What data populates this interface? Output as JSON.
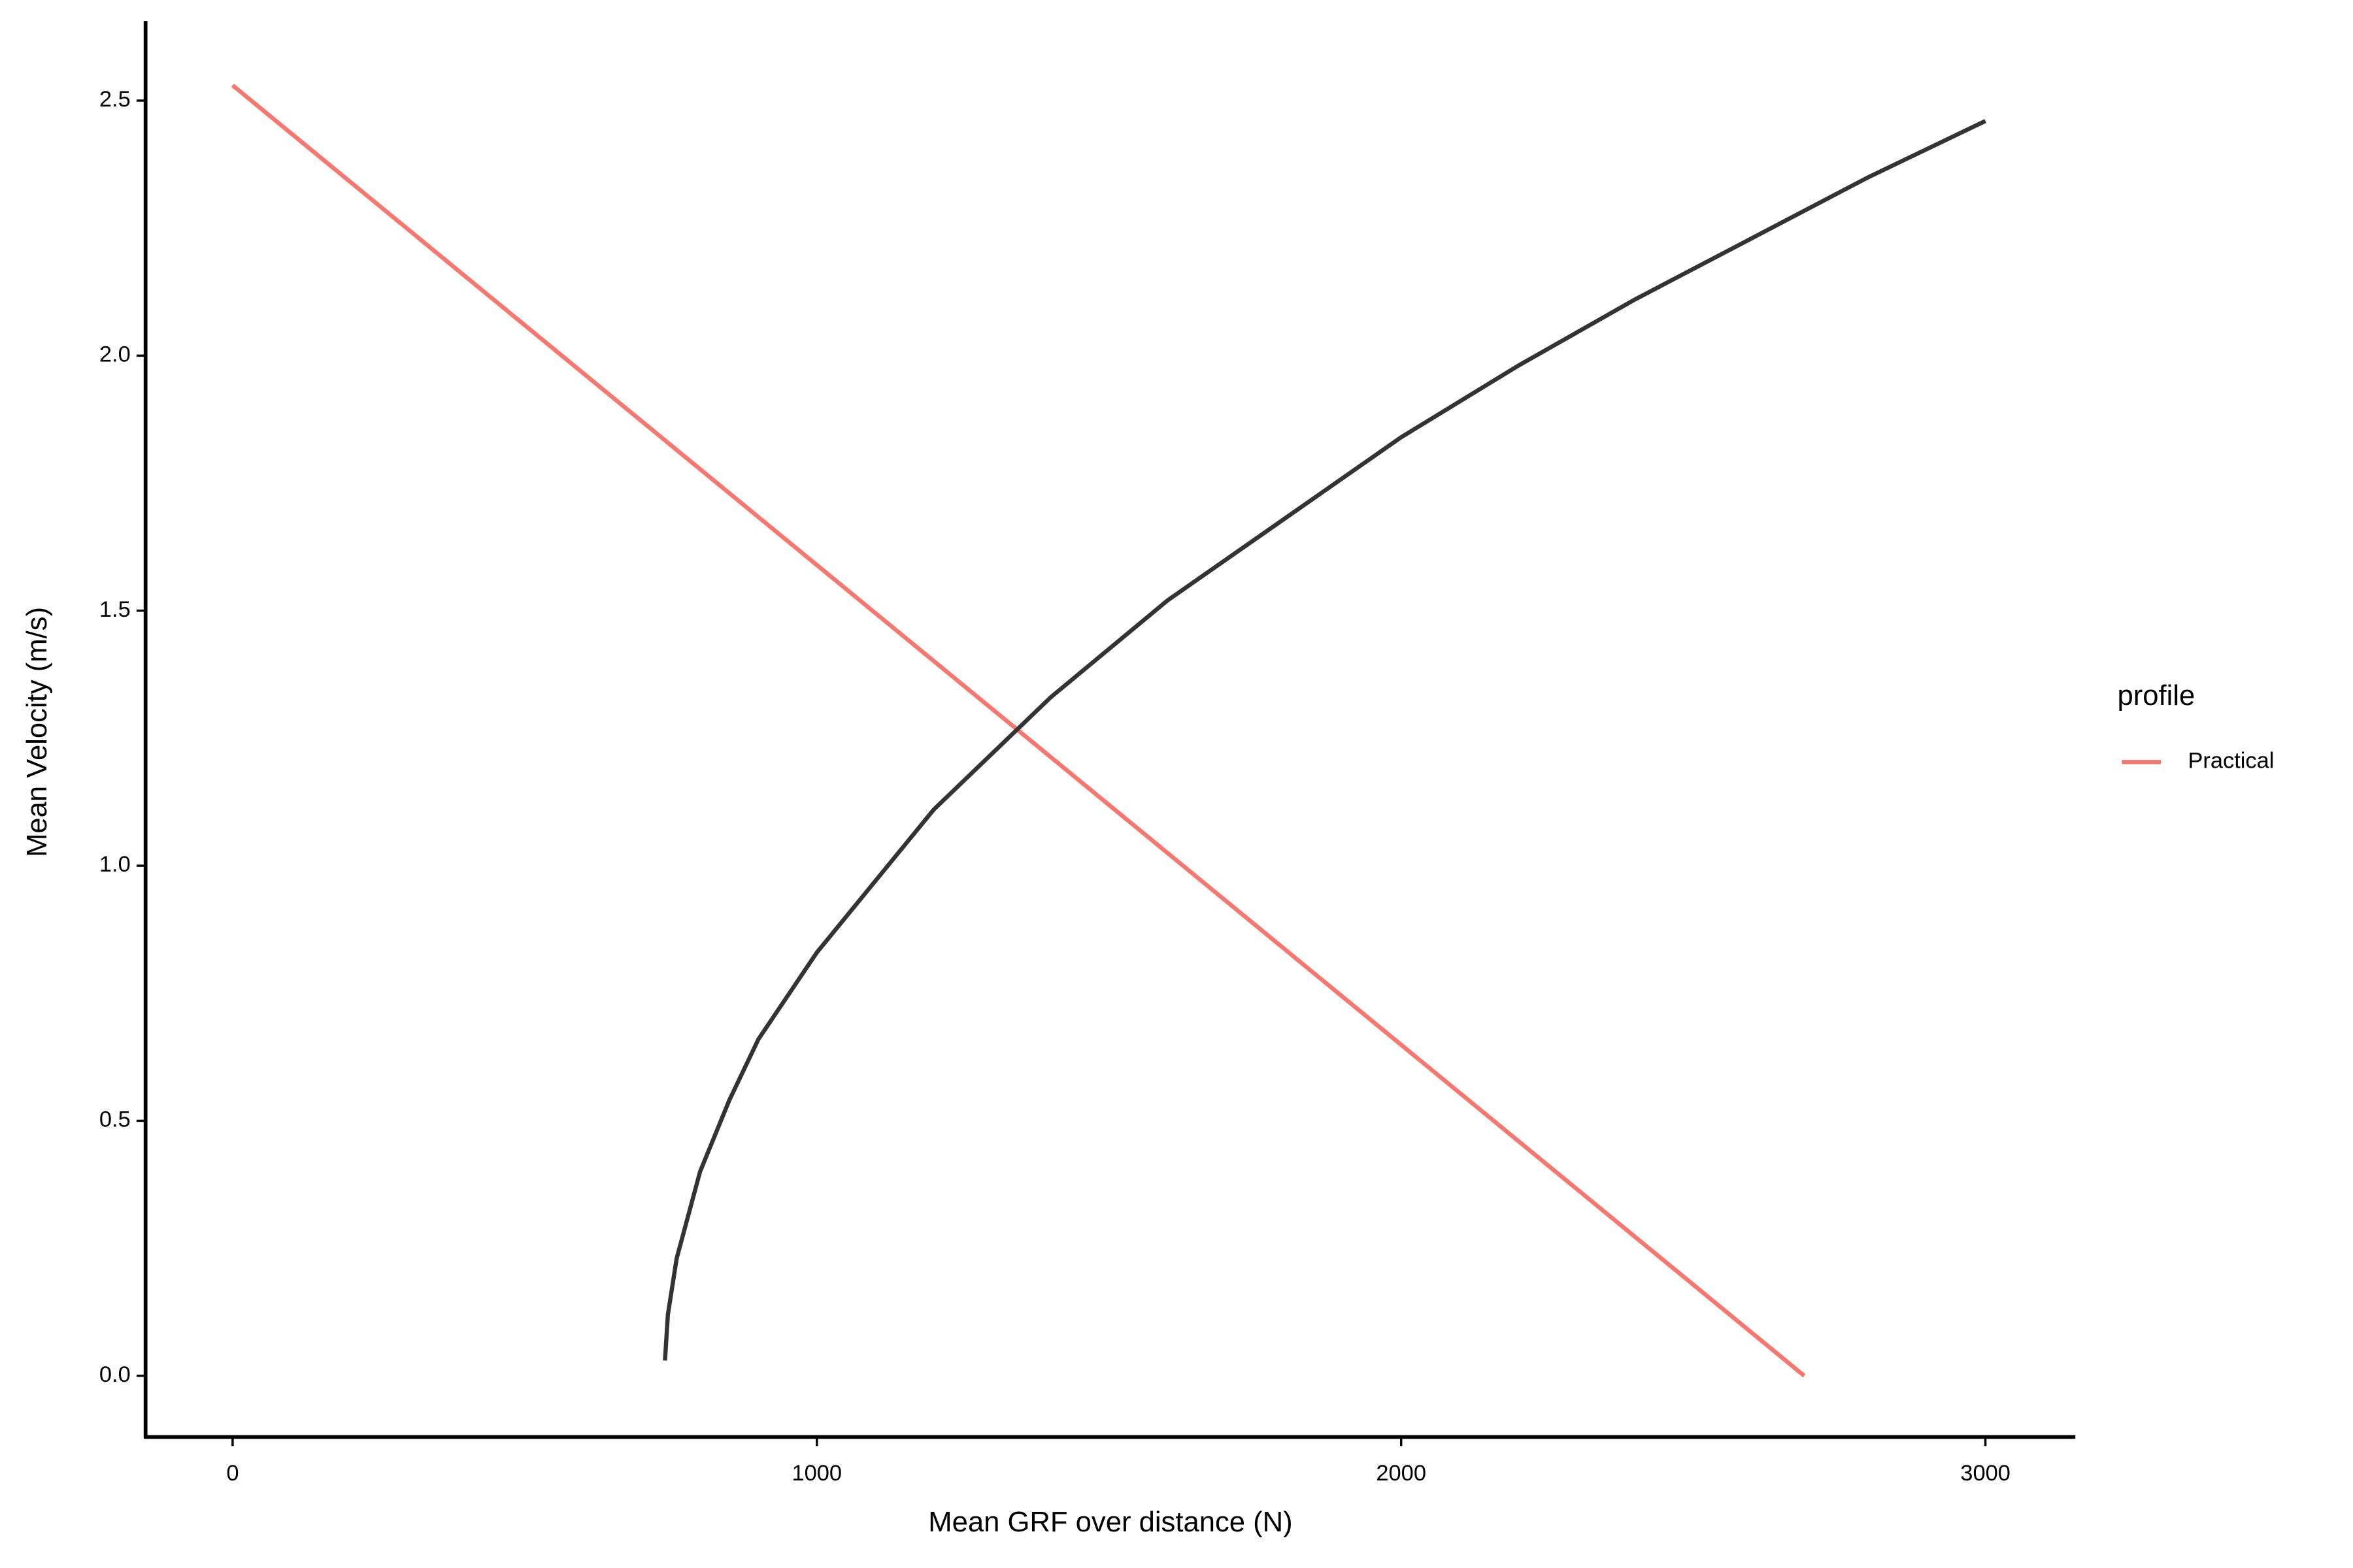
{
  "chart_data": {
    "type": "line",
    "x_label": "Mean GRF over distance (N)",
    "y_label": "Mean Velocity (m/s)",
    "legend_title": "profile",
    "legend_position": "right",
    "xlim": [
      -149,
      3154
    ],
    "xticks": [
      0,
      1000,
      2000,
      3000
    ],
    "ylim": [
      -0.12,
      2.656
    ],
    "yticks": [
      {
        "value": 0,
        "label": "0.0"
      },
      0.5,
      {
        "value": 1,
        "label": "1.0"
      },
      1.5,
      {
        "value": 2,
        "label": "2.0"
      },
      2.5
    ],
    "grid": false,
    "series": [
      {
        "name": "Practical",
        "color": "#f8766d",
        "x": [
          0,
          2690
        ],
        "values": [
          2.53,
          0
        ]
      },
      {
        "color": "#333333",
        "x": [
          740,
          745,
          760,
          800,
          850,
          900,
          1000,
          1200,
          1400,
          1600,
          1800,
          2000,
          2200,
          2400,
          2600,
          2800,
          3000
        ],
        "values": [
          0.03,
          0.12,
          0.23,
          0.4,
          0.54,
          0.66,
          0.83,
          1.11,
          1.33,
          1.52,
          1.68,
          1.84,
          1.98,
          2.11,
          2.23,
          2.35,
          2.46
        ]
      }
    ]
  }
}
